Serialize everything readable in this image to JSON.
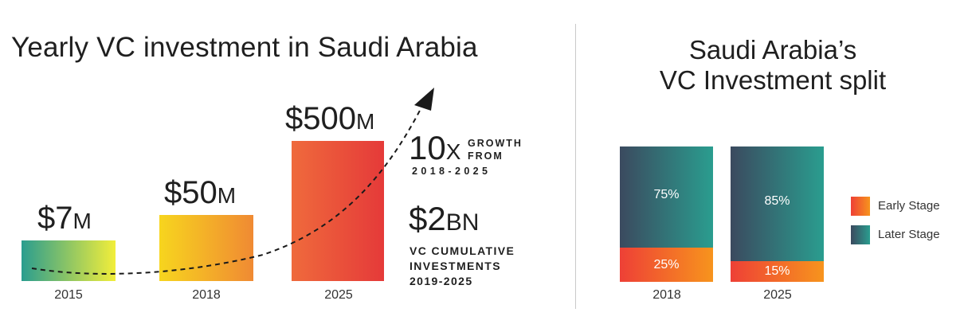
{
  "left_title": "Yearly VC investment in Saudi Arabia",
  "right_title_line1": "Saudi Arabia’s",
  "right_title_line2": "VC Investment split",
  "growth": {
    "multiple": "10",
    "multiple_suffix": "X",
    "line1": "GROWTH",
    "line2": "FROM",
    "range": "2018-2025"
  },
  "cumulative": {
    "amount": "$2",
    "amount_suffix": "BN",
    "line1": "VC CUMULATIVE",
    "line2": "INVESTMENTS",
    "line3": "2019-2025"
  },
  "chart_data": [
    {
      "type": "bar",
      "categories": [
        "2015",
        "2018",
        "2025"
      ],
      "values": [
        7,
        50,
        500
      ],
      "value_labels": [
        {
          "main": "$7",
          "suffix": "M"
        },
        {
          "main": "$50",
          "suffix": "M"
        },
        {
          "main": "$500",
          "suffix": "M"
        }
      ],
      "title": "Yearly VC investment in Saudi Arabia",
      "colors": {
        "2015": [
          "#2a9d8f",
          "#f2ee3a"
        ],
        "2018": [
          "#f7d51e",
          "#f08a33"
        ],
        "2025": [
          "#ef6a3c",
          "#e53a39"
        ]
      },
      "trend_arrow": true
    },
    {
      "type": "bar",
      "stacked": true,
      "percent": true,
      "categories": [
        "2018",
        "2025"
      ],
      "series": [
        {
          "name": "Early Stage",
          "values": [
            25,
            15
          ],
          "colors": [
            "#ee4036",
            "#f7941d"
          ]
        },
        {
          "name": "Later Stage",
          "values": [
            75,
            85
          ],
          "colors": [
            "#3b4a5f",
            "#2a9d8f"
          ]
        }
      ],
      "labels": {
        "Early Stage": [
          "25%",
          "15%"
        ],
        "Later Stage": [
          "75%",
          "85%"
        ]
      },
      "title": "Saudi Arabia’s VC Investment split",
      "legend": "right"
    }
  ]
}
